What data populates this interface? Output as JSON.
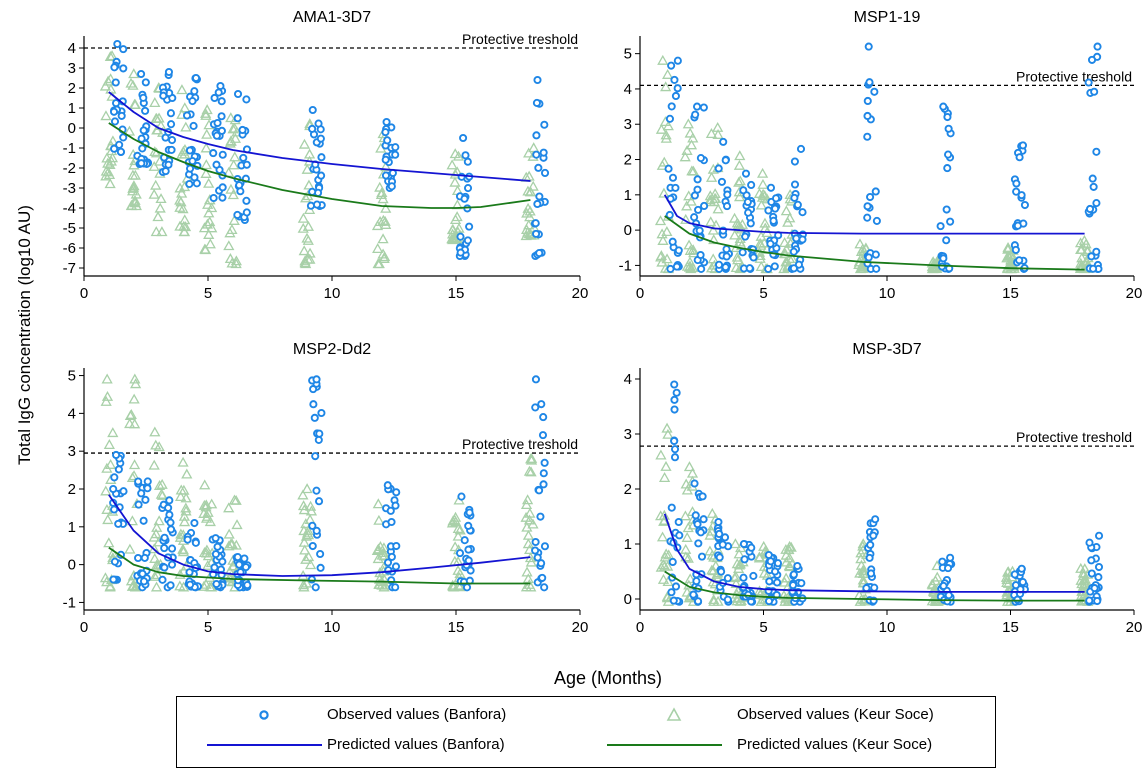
{
  "shared": {
    "ylabel": "Total IgG concentration (log10 AU)",
    "xlabel": "Age (Months)",
    "xlim": [
      0,
      20
    ],
    "xticks": [
      0,
      5,
      10,
      15,
      20
    ]
  },
  "legend": [
    {
      "key": "obs_banfora",
      "label": "Observed values (Banfora)",
      "marker": "circle",
      "color": "#1e86e6"
    },
    {
      "key": "obs_keur",
      "label": "Observed values (Keur Soce)",
      "marker": "triangle",
      "color": "#a8d0a8"
    },
    {
      "key": "pred_banfora",
      "label": "Predicted values (Banfora)",
      "marker": "line",
      "color": "#1414d2"
    },
    {
      "key": "pred_keur",
      "label": "Predicted values (Keur Soce)",
      "marker": "line",
      "color": "#1a7a1a"
    }
  ],
  "colors": {
    "banfora_marker": "#1e86e6",
    "keur_marker": "#a8d0a8",
    "banfora_line": "#1414d2",
    "keur_line": "#1a7a1a"
  },
  "chart_data": [
    {
      "type": "scatter",
      "title": "AMA1-3D7",
      "ylim": [
        -7.4,
        4.6
      ],
      "yticks": [
        4,
        3,
        2,
        1,
        0,
        -1,
        -2,
        -3,
        -4,
        -5,
        -6,
        -7
      ],
      "threshold": {
        "value": 4,
        "label": "Protective treshold"
      },
      "observed_ages": [
        1,
        2,
        3,
        4,
        5,
        6,
        9,
        12,
        15,
        18
      ],
      "banfora_observed_range": [
        [
          -1.2,
          4.2
        ],
        [
          -1.8,
          2.7
        ],
        [
          -2.2,
          2.8
        ],
        [
          -2.8,
          2.5
        ],
        [
          -3.5,
          2.1
        ],
        [
          -4.6,
          1.7
        ],
        [
          -3.9,
          0.9
        ],
        [
          -3.0,
          0.3
        ],
        [
          -6.4,
          -0.5
        ],
        [
          -6.4,
          2.4
        ]
      ],
      "keur_observed_range": [
        [
          -2.8,
          3.6
        ],
        [
          -3.9,
          2.7
        ],
        [
          -5.2,
          2.0
        ],
        [
          -5.2,
          1.9
        ],
        [
          -6.1,
          0.9
        ],
        [
          -6.8,
          0.5
        ],
        [
          -6.8,
          0.2
        ],
        [
          -6.8,
          -0.3
        ],
        [
          -5.6,
          -1.3
        ],
        [
          -5.4,
          -1.0
        ]
      ],
      "series": [
        {
          "name": "Predicted values (Banfora)",
          "x": [
            1,
            2,
            3,
            4,
            5,
            6,
            8,
            10,
            12,
            14,
            16,
            18
          ],
          "y": [
            1.8,
            0.8,
            0.0,
            -0.45,
            -0.8,
            -1.1,
            -1.5,
            -1.8,
            -2.05,
            -2.25,
            -2.45,
            -2.65
          ]
        },
        {
          "name": "Predicted values (Keur Soce)",
          "x": [
            1,
            2,
            3,
            4,
            5,
            6,
            8,
            10,
            12,
            14,
            15,
            16,
            18
          ],
          "y": [
            0.25,
            -0.55,
            -1.2,
            -1.7,
            -2.15,
            -2.5,
            -3.1,
            -3.55,
            -3.9,
            -4.0,
            -4.0,
            -3.95,
            -3.6
          ]
        }
      ]
    },
    {
      "type": "scatter",
      "title": "MSP1-19",
      "ylim": [
        -1.3,
        5.5
      ],
      "yticks": [
        5,
        4,
        3,
        2,
        1,
        0,
        -1
      ],
      "threshold": {
        "value": 4.1,
        "label": "Protective treshold"
      },
      "observed_ages": [
        1,
        2,
        3,
        4,
        5,
        6,
        9,
        12,
        15,
        18
      ],
      "banfora_observed_range": [
        [
          -1.1,
          4.8
        ],
        [
          -1.1,
          3.5
        ],
        [
          -1.1,
          2.5
        ],
        [
          -1.1,
          1.6
        ],
        [
          -1.1,
          1.2
        ],
        [
          -1.1,
          2.3
        ],
        [
          -1.1,
          5.2
        ],
        [
          -1.1,
          3.5
        ],
        [
          -1.1,
          2.4
        ],
        [
          -1.1,
          5.2
        ]
      ],
      "keur_observed_range": [
        [
          -1.1,
          4.8
        ],
        [
          -1.1,
          3.0
        ],
        [
          -1.1,
          2.9
        ],
        [
          -1.1,
          2.1
        ],
        [
          -1.1,
          1.6
        ],
        [
          -1.1,
          1.0
        ],
        [
          -1.1,
          -0.4
        ],
        [
          -1.1,
          -0.8
        ],
        [
          -1.1,
          -0.5
        ],
        [
          -1.1,
          -0.3
        ]
      ],
      "series": [
        {
          "name": "Predicted values (Banfora)",
          "x": [
            1,
            1.5,
            2,
            3,
            4,
            5,
            6,
            9,
            12,
            15,
            18
          ],
          "y": [
            1.0,
            0.4,
            0.2,
            0.05,
            0.0,
            -0.05,
            -0.08,
            -0.1,
            -0.1,
            -0.1,
            -0.1
          ]
        },
        {
          "name": "Predicted values (Keur Soce)",
          "x": [
            1,
            2,
            3,
            4,
            5,
            6,
            9,
            12,
            15,
            18
          ],
          "y": [
            0.4,
            -0.1,
            -0.35,
            -0.5,
            -0.62,
            -0.72,
            -0.9,
            -1.0,
            -1.08,
            -1.12
          ]
        }
      ]
    },
    {
      "type": "scatter",
      "title": "MSP2-Dd2",
      "ylim": [
        -1.2,
        5.2
      ],
      "yticks": [
        5,
        4,
        3,
        2,
        1,
        0,
        -1
      ],
      "threshold": {
        "value": 2.95,
        "label": "Protective treshold"
      },
      "observed_ages": [
        1,
        2,
        3,
        4,
        5,
        6,
        9,
        12,
        15,
        18
      ],
      "banfora_observed_range": [
        [
          -0.4,
          2.9
        ],
        [
          -0.6,
          2.2
        ],
        [
          -0.6,
          1.7
        ],
        [
          -0.6,
          1.1
        ],
        [
          -0.6,
          0.7
        ],
        [
          -0.6,
          0.2
        ],
        [
          -0.6,
          4.9
        ],
        [
          -0.6,
          2.1
        ],
        [
          -0.6,
          1.8
        ],
        [
          -0.6,
          4.9
        ]
      ],
      "keur_observed_range": [
        [
          -0.6,
          4.9
        ],
        [
          -0.6,
          4.9
        ],
        [
          -0.6,
          3.5
        ],
        [
          -0.6,
          2.7
        ],
        [
          -0.6,
          2.1
        ],
        [
          -0.6,
          1.7
        ],
        [
          -0.6,
          2.0
        ],
        [
          -0.6,
          1.6
        ],
        [
          -0.6,
          1.7
        ],
        [
          -0.6,
          2.8
        ]
      ],
      "series": [
        {
          "name": "Predicted values (Banfora)",
          "x": [
            1,
            2,
            3,
            4,
            5,
            6,
            8,
            10,
            12,
            14,
            16,
            18
          ],
          "y": [
            1.85,
            0.9,
            0.3,
            0.0,
            -0.18,
            -0.25,
            -0.3,
            -0.28,
            -0.2,
            -0.08,
            0.05,
            0.2
          ]
        },
        {
          "name": "Predicted values (Keur Soce)",
          "x": [
            1,
            2,
            3,
            4,
            6,
            9,
            12,
            15,
            18
          ],
          "y": [
            0.45,
            0.0,
            -0.2,
            -0.3,
            -0.38,
            -0.42,
            -0.45,
            -0.5,
            -0.5
          ]
        }
      ]
    },
    {
      "type": "scatter",
      "title": "MSP-3D7",
      "ylim": [
        -0.2,
        4.2
      ],
      "yticks": [
        4,
        3,
        2,
        1,
        0
      ],
      "threshold": {
        "value": 2.78,
        "label": "Protective treshold"
      },
      "observed_ages": [
        1,
        2,
        3,
        4,
        5,
        6,
        9,
        12,
        15,
        18
      ],
      "banfora_observed_range": [
        [
          -0.05,
          3.9
        ],
        [
          -0.05,
          2.1
        ],
        [
          -0.05,
          1.4
        ],
        [
          -0.05,
          1.0
        ],
        [
          -0.05,
          0.8
        ],
        [
          -0.05,
          0.6
        ],
        [
          -0.05,
          1.45
        ],
        [
          -0.05,
          0.75
        ],
        [
          -0.05,
          0.55
        ],
        [
          -0.05,
          1.15
        ]
      ],
      "keur_observed_range": [
        [
          -0.05,
          3.1
        ],
        [
          -0.05,
          2.4
        ],
        [
          -0.05,
          1.55
        ],
        [
          -0.05,
          1.0
        ],
        [
          -0.05,
          0.95
        ],
        [
          -0.05,
          0.95
        ],
        [
          -0.05,
          1.0
        ],
        [
          -0.05,
          0.6
        ],
        [
          -0.05,
          0.5
        ],
        [
          -0.05,
          0.55
        ]
      ],
      "series": [
        {
          "name": "Predicted values (Banfora)",
          "x": [
            1,
            1.5,
            2,
            3,
            4,
            5,
            6,
            9,
            12,
            15,
            18
          ],
          "y": [
            1.55,
            0.9,
            0.55,
            0.32,
            0.22,
            0.18,
            0.16,
            0.14,
            0.13,
            0.13,
            0.13
          ]
        },
        {
          "name": "Predicted values (Keur Soce)",
          "x": [
            1,
            2,
            3,
            4,
            5,
            6,
            9,
            12,
            15,
            18
          ],
          "y": [
            0.5,
            0.22,
            0.12,
            0.07,
            0.04,
            0.02,
            0.0,
            -0.02,
            -0.03,
            -0.03
          ]
        }
      ]
    }
  ]
}
